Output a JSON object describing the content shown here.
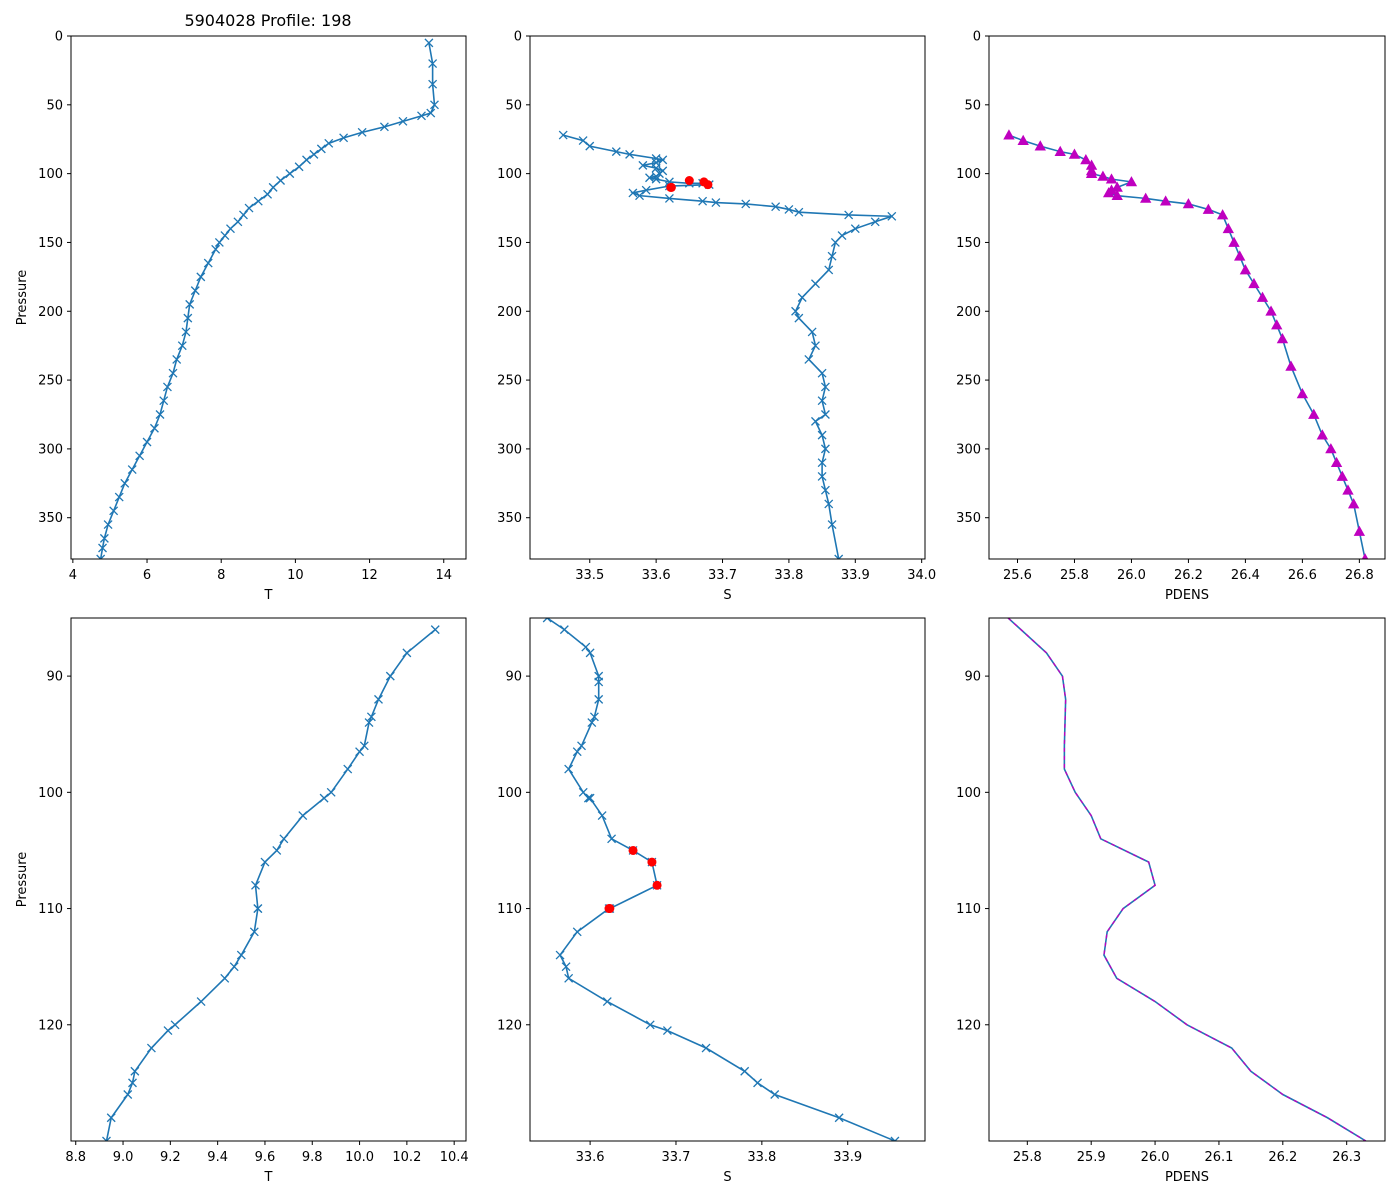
{
  "figure_title": "5904028 Profile: 198",
  "colors": {
    "line": "#1f77b4",
    "flag": "#ff0000",
    "density": "#bf00bf"
  },
  "chart_data": [
    {
      "id": "top-t",
      "type": "line",
      "marker": "x",
      "title": "5904028 Profile: 198",
      "xlabel": "T",
      "ylabel": "Pressure",
      "xlim": [
        3.95,
        14.6
      ],
      "ylim": [
        380,
        0
      ],
      "xticks": [
        4,
        6,
        8,
        10,
        12,
        14
      ],
      "yticks": [
        0,
        50,
        100,
        150,
        200,
        250,
        300,
        350
      ],
      "series": [
        {
          "name": "T",
          "x": [
            13.6,
            13.7,
            13.7,
            13.75,
            13.65,
            13.4,
            12.9,
            12.4,
            11.8,
            11.3,
            10.9,
            10.7,
            10.5,
            10.3,
            10.1,
            9.85,
            9.6,
            9.4,
            9.25,
            9.0,
            8.75,
            8.6,
            8.45,
            8.25,
            8.1,
            7.95,
            7.85,
            7.65,
            7.45,
            7.3,
            7.15,
            7.1,
            7.05,
            6.95,
            6.8,
            6.7,
            6.55,
            6.45,
            6.35,
            6.2,
            6.0,
            5.8,
            5.6,
            5.4,
            5.25,
            5.1,
            4.95,
            4.85,
            4.8,
            4.75
          ],
          "y": [
            5,
            20,
            35,
            50,
            56,
            58,
            62,
            66,
            70,
            74,
            78,
            82,
            86,
            90,
            95,
            100,
            105,
            110,
            115,
            120,
            125,
            130,
            135,
            140,
            145,
            150,
            155,
            165,
            175,
            185,
            195,
            205,
            215,
            225,
            235,
            245,
            255,
            265,
            275,
            285,
            295,
            305,
            315,
            325,
            335,
            345,
            355,
            365,
            372,
            380
          ]
        }
      ]
    },
    {
      "id": "top-s",
      "type": "line",
      "marker": "x",
      "title": "",
      "xlabel": "S",
      "ylabel": "",
      "xlim": [
        33.41,
        34.005
      ],
      "ylim": [
        380,
        0
      ],
      "xticks": [
        33.5,
        33.6,
        33.7,
        33.8,
        33.9,
        34.0
      ],
      "yticks": [
        0,
        50,
        100,
        150,
        200,
        250,
        300,
        350
      ],
      "series": [
        {
          "name": "S",
          "x": [
            33.46,
            33.49,
            33.5,
            33.54,
            33.56,
            33.6,
            33.61,
            33.6,
            33.58,
            33.6,
            33.61,
            33.605,
            33.6,
            33.59,
            33.6,
            33.62,
            33.65,
            33.67,
            33.68,
            33.62,
            33.585,
            33.565,
            33.575,
            33.62,
            33.67,
            33.69,
            33.735,
            33.78,
            33.8,
            33.815,
            33.89,
            33.955,
            33.93,
            33.9,
            33.88,
            33.87,
            33.865,
            33.86,
            33.84,
            33.82,
            33.81,
            33.815,
            33.835,
            33.84,
            33.83,
            33.85,
            33.855,
            33.85,
            33.855,
            33.84,
            33.85,
            33.855,
            33.85,
            33.85,
            33.855,
            33.86,
            33.865,
            33.875
          ],
          "y": [
            72,
            76,
            80,
            84,
            86,
            89,
            90,
            92,
            94,
            96,
            98,
            100,
            102,
            103,
            104,
            106,
            107,
            107,
            108,
            109,
            112,
            114,
            116,
            118,
            120,
            121,
            122,
            124,
            126,
            128,
            130,
            131,
            135,
            140,
            145,
            150,
            160,
            170,
            180,
            190,
            200,
            205,
            215,
            225,
            235,
            245,
            255,
            265,
            275,
            280,
            290,
            300,
            310,
            320,
            330,
            340,
            355,
            380
          ]
        }
      ],
      "flags": {
        "name": "flagged",
        "x": [
          33.65,
          33.672,
          33.678,
          33.623,
          33.622
        ],
        "y": [
          105,
          106,
          108,
          110,
          110
        ]
      }
    },
    {
      "id": "top-pdens",
      "type": "line",
      "marker": "triangle",
      "title": "",
      "xlabel": "PDENS",
      "ylabel": "",
      "xlim": [
        25.5,
        26.89
      ],
      "ylim": [
        380,
        0
      ],
      "xticks": [
        25.6,
        25.8,
        26.0,
        26.2,
        26.4,
        26.6,
        26.8
      ],
      "yticks": [
        0,
        50,
        100,
        150,
        200,
        250,
        300,
        350
      ],
      "series": [
        {
          "name": "PDENS",
          "x": [
            25.57,
            25.62,
            25.68,
            25.75,
            25.8,
            25.84,
            25.86,
            25.86,
            25.86,
            25.9,
            25.93,
            26.0,
            25.95,
            25.93,
            25.92,
            25.95,
            26.05,
            26.12,
            26.2,
            26.27,
            26.32,
            26.34,
            26.36,
            26.38,
            26.4,
            26.43,
            26.46,
            26.49,
            26.51,
            26.53,
            26.56,
            26.6,
            26.64,
            26.67,
            26.7,
            26.72,
            26.74,
            26.76,
            26.78,
            26.8,
            26.82
          ],
          "y": [
            72,
            76,
            80,
            84,
            86,
            90,
            94,
            98,
            100,
            102,
            104,
            106,
            110,
            112,
            114,
            116,
            118,
            120,
            122,
            126,
            130,
            140,
            150,
            160,
            170,
            180,
            190,
            200,
            210,
            220,
            240,
            260,
            275,
            290,
            300,
            310,
            320,
            330,
            340,
            360,
            380
          ]
        }
      ]
    },
    {
      "id": "bottom-t",
      "type": "line",
      "marker": "x",
      "title": "",
      "xlabel": "T",
      "ylabel": "Pressure",
      "xlim": [
        8.78,
        10.45
      ],
      "ylim": [
        130,
        85
      ],
      "xticks": [
        8.8,
        9.0,
        9.2,
        9.4,
        9.6,
        9.8,
        10.0,
        10.2,
        10.4
      ],
      "yticks": [
        90,
        100,
        110,
        120
      ],
      "series": [
        {
          "name": "T",
          "x": [
            10.32,
            10.2,
            10.13,
            10.08,
            10.05,
            10.04,
            10.02,
            10.0,
            9.95,
            9.88,
            9.85,
            9.76,
            9.68,
            9.65,
            9.6,
            9.56,
            9.57,
            9.57,
            9.555,
            9.5,
            9.47,
            9.43,
            9.33,
            9.22,
            9.19,
            9.12,
            9.05,
            9.04,
            9.02,
            8.95,
            8.93,
            8.92
          ],
          "y": [
            86,
            88,
            90,
            92,
            93.5,
            94,
            96,
            96.5,
            98,
            100,
            100.5,
            102,
            104,
            105,
            106,
            108,
            110,
            110,
            112,
            114,
            115,
            116,
            118,
            120,
            120.5,
            122,
            124,
            125,
            126,
            128,
            130,
            130.5
          ]
        }
      ]
    },
    {
      "id": "bottom-s",
      "type": "line",
      "marker": "x",
      "title": "",
      "xlabel": "S",
      "ylabel": "",
      "xlim": [
        33.53,
        33.99
      ],
      "ylim": [
        130,
        85
      ],
      "xticks": [
        33.6,
        33.7,
        33.8,
        33.9
      ],
      "yticks": [
        90,
        100,
        110,
        120
      ],
      "series": [
        {
          "name": "S",
          "x": [
            33.55,
            33.57,
            33.595,
            33.6,
            33.61,
            33.61,
            33.61,
            33.605,
            33.602,
            33.59,
            33.585,
            33.575,
            33.592,
            33.598,
            33.6,
            33.614,
            33.625,
            33.65,
            33.672,
            33.678,
            33.623,
            33.622,
            33.585,
            33.565,
            33.572,
            33.575,
            33.62,
            33.67,
            33.69,
            33.735,
            33.78,
            33.795,
            33.815,
            33.89,
            33.955
          ],
          "y": [
            85,
            86,
            87.5,
            88,
            90,
            90.5,
            92,
            93.5,
            94,
            96,
            96.5,
            98,
            100,
            100.5,
            100.5,
            102,
            104,
            105,
            106,
            108,
            110,
            110,
            112,
            114,
            115,
            116,
            118,
            120,
            120.5,
            122,
            124,
            125,
            126,
            128,
            130
          ]
        }
      ],
      "flags": {
        "name": "flagged",
        "x": [
          33.65,
          33.672,
          33.678,
          33.623,
          33.622
        ],
        "y": [
          105,
          106,
          108,
          110,
          110
        ]
      }
    },
    {
      "id": "bottom-pdens",
      "type": "line",
      "marker": "none",
      "title": "",
      "xlabel": "PDENS",
      "ylabel": "",
      "xlim": [
        25.74,
        26.36
      ],
      "ylim": [
        130,
        85
      ],
      "xticks": [
        25.8,
        25.9,
        26.0,
        26.1,
        26.2,
        26.3
      ],
      "yticks": [
        90,
        100,
        110,
        120
      ],
      "series": [
        {
          "name": "PDENS",
          "x": [
            25.77,
            25.79,
            25.83,
            25.855,
            25.86,
            25.858,
            25.858,
            25.875,
            25.9,
            25.915,
            25.99,
            26.0,
            25.95,
            25.925,
            25.92,
            25.94,
            26.0,
            26.05,
            26.12,
            26.15,
            26.2,
            26.27,
            26.33
          ],
          "y": [
            85,
            86,
            88,
            90,
            92,
            96,
            98,
            100,
            102,
            104,
            106,
            108,
            110,
            112,
            114,
            116,
            118,
            120,
            122,
            124,
            126,
            128,
            130
          ]
        }
      ]
    }
  ]
}
